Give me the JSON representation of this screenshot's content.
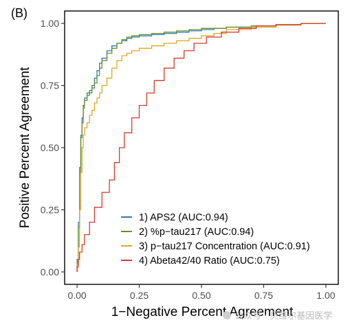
{
  "chart_data": {
    "type": "line",
    "panel_label": "(B)",
    "xlabel": "1−Negative Percent Agreement",
    "ylabel": "Positive Percent Agreement",
    "xlim": [
      -0.05,
      1.05
    ],
    "ylim": [
      -0.05,
      1.05
    ],
    "x_ticks": [
      0.0,
      0.25,
      0.5,
      0.75,
      1.0
    ],
    "x_tick_labels": [
      "0.00",
      "0.25",
      "0.50",
      "0.75",
      "1.00"
    ],
    "y_ticks": [
      0.0,
      0.25,
      0.5,
      0.75,
      1.0
    ],
    "y_tick_labels": [
      "0.00",
      "0.25",
      "0.50",
      "0.75",
      "1.00"
    ],
    "grid": false,
    "legend_position": "bottom-right",
    "series": [
      {
        "name": "1) APS2 (AUC:0.94)",
        "color": "#2a7ab8",
        "points": [
          [
            0,
            0
          ],
          [
            0.005,
            0.05
          ],
          [
            0.01,
            0.2
          ],
          [
            0.015,
            0.42
          ],
          [
            0.02,
            0.55
          ],
          [
            0.025,
            0.62
          ],
          [
            0.03,
            0.67
          ],
          [
            0.04,
            0.7
          ],
          [
            0.05,
            0.72
          ],
          [
            0.06,
            0.73
          ],
          [
            0.07,
            0.75
          ],
          [
            0.08,
            0.78
          ],
          [
            0.09,
            0.81
          ],
          [
            0.1,
            0.84
          ],
          [
            0.12,
            0.86
          ],
          [
            0.14,
            0.89
          ],
          [
            0.16,
            0.91
          ],
          [
            0.18,
            0.92
          ],
          [
            0.2,
            0.93
          ],
          [
            0.22,
            0.94
          ],
          [
            0.25,
            0.945
          ],
          [
            0.3,
            0.95
          ],
          [
            0.35,
            0.955
          ],
          [
            0.4,
            0.96
          ],
          [
            0.45,
            0.965
          ],
          [
            0.5,
            0.97
          ],
          [
            0.55,
            0.975
          ],
          [
            0.6,
            0.98
          ],
          [
            0.7,
            0.985
          ],
          [
            0.8,
            0.99
          ],
          [
            0.9,
            0.995
          ],
          [
            1.0,
            1.0
          ]
        ]
      },
      {
        "name": "2) %p−tau217 (AUC:0.94)",
        "color": "#6b8e23",
        "points": [
          [
            0,
            0
          ],
          [
            0.005,
            0.04
          ],
          [
            0.01,
            0.18
          ],
          [
            0.015,
            0.4
          ],
          [
            0.02,
            0.54
          ],
          [
            0.025,
            0.6
          ],
          [
            0.03,
            0.66
          ],
          [
            0.04,
            0.69
          ],
          [
            0.05,
            0.71
          ],
          [
            0.06,
            0.72
          ],
          [
            0.07,
            0.74
          ],
          [
            0.08,
            0.76
          ],
          [
            0.09,
            0.79
          ],
          [
            0.1,
            0.82
          ],
          [
            0.12,
            0.85
          ],
          [
            0.14,
            0.88
          ],
          [
            0.16,
            0.9
          ],
          [
            0.18,
            0.92
          ],
          [
            0.2,
            0.935
          ],
          [
            0.22,
            0.945
          ],
          [
            0.25,
            0.95
          ],
          [
            0.3,
            0.955
          ],
          [
            0.35,
            0.96
          ],
          [
            0.4,
            0.965
          ],
          [
            0.45,
            0.97
          ],
          [
            0.5,
            0.975
          ],
          [
            0.6,
            0.98
          ],
          [
            0.7,
            0.985
          ],
          [
            0.8,
            0.99
          ],
          [
            0.9,
            0.995
          ],
          [
            1.0,
            1.0
          ]
        ]
      },
      {
        "name": "3) p−tau217 Concentration (AUC:0.91)",
        "color": "#e0a526",
        "points": [
          [
            0,
            0
          ],
          [
            0.005,
            0.03
          ],
          [
            0.01,
            0.1
          ],
          [
            0.015,
            0.25
          ],
          [
            0.02,
            0.4
          ],
          [
            0.025,
            0.5
          ],
          [
            0.03,
            0.55
          ],
          [
            0.04,
            0.58
          ],
          [
            0.05,
            0.6
          ],
          [
            0.06,
            0.63
          ],
          [
            0.07,
            0.65
          ],
          [
            0.08,
            0.68
          ],
          [
            0.09,
            0.7
          ],
          [
            0.1,
            0.72
          ],
          [
            0.12,
            0.75
          ],
          [
            0.14,
            0.78
          ],
          [
            0.16,
            0.82
          ],
          [
            0.18,
            0.85
          ],
          [
            0.2,
            0.87
          ],
          [
            0.22,
            0.88
          ],
          [
            0.25,
            0.89
          ],
          [
            0.3,
            0.9
          ],
          [
            0.35,
            0.91
          ],
          [
            0.4,
            0.92
          ],
          [
            0.45,
            0.93
          ],
          [
            0.5,
            0.94
          ],
          [
            0.55,
            0.95
          ],
          [
            0.6,
            0.96
          ],
          [
            0.7,
            0.975
          ],
          [
            0.8,
            0.985
          ],
          [
            0.9,
            0.993
          ],
          [
            1.0,
            1.0
          ]
        ]
      },
      {
        "name": "4) Abeta42/40 Ratio (AUC:0.75)",
        "color": "#d23a2b",
        "points": [
          [
            0,
            0
          ],
          [
            0.005,
            0.02
          ],
          [
            0.01,
            0.05
          ],
          [
            0.02,
            0.08
          ],
          [
            0.03,
            0.11
          ],
          [
            0.05,
            0.15
          ],
          [
            0.07,
            0.2
          ],
          [
            0.1,
            0.26
          ],
          [
            0.13,
            0.32
          ],
          [
            0.15,
            0.37
          ],
          [
            0.17,
            0.44
          ],
          [
            0.19,
            0.5
          ],
          [
            0.22,
            0.56
          ],
          [
            0.25,
            0.62
          ],
          [
            0.28,
            0.67
          ],
          [
            0.31,
            0.72
          ],
          [
            0.35,
            0.77
          ],
          [
            0.39,
            0.82
          ],
          [
            0.43,
            0.86
          ],
          [
            0.47,
            0.89
          ],
          [
            0.52,
            0.92
          ],
          [
            0.58,
            0.945
          ],
          [
            0.65,
            0.965
          ],
          [
            0.72,
            0.98
          ],
          [
            0.8,
            0.99
          ],
          [
            0.9,
            0.995
          ],
          [
            1.0,
            1.0
          ]
        ]
      }
    ]
  },
  "watermark": "公众号 · 贝维尔基因医学"
}
